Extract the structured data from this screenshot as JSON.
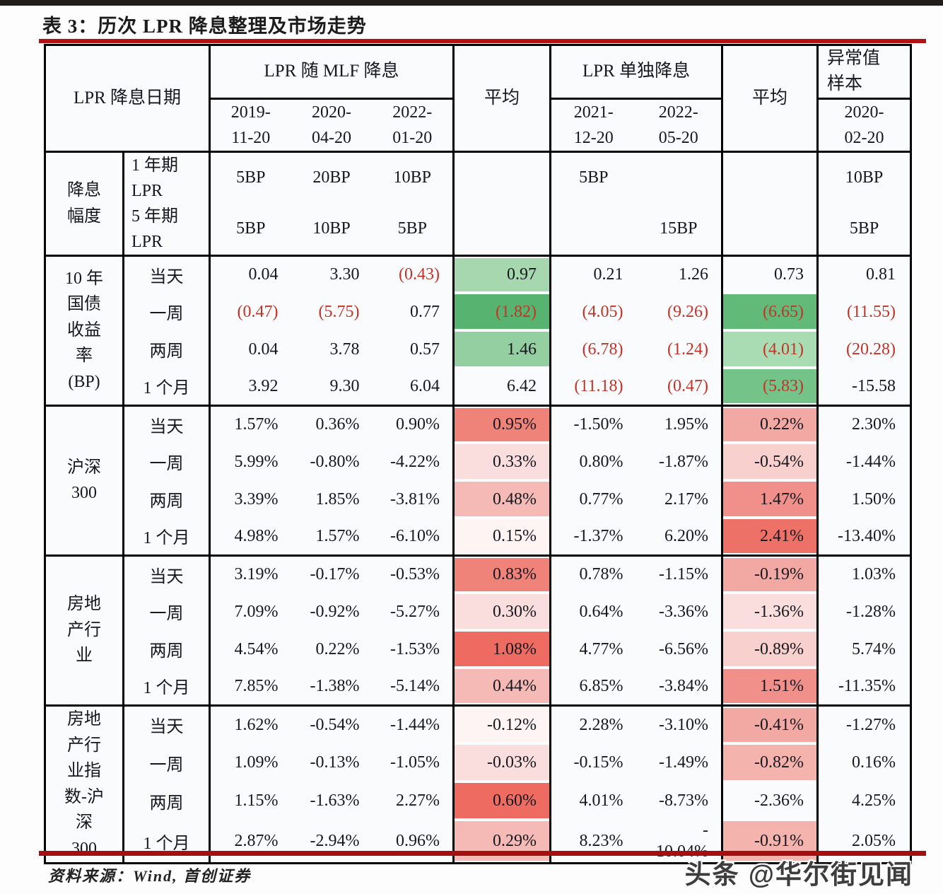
{
  "title": "表 3：历次 LPR 降息整理及市场走势",
  "source_note": "资料来源：Wind, 首创证券",
  "watermark": "头条 @华尔街见闻",
  "colors": {
    "rule_line_top": "#b31111",
    "rule_line_bottom": "#a60f0f",
    "negative_text": "#c2342a",
    "cell_background": "#fafbfc",
    "text": "#17171f",
    "border": "#000000"
  },
  "header": {
    "date_col": "LPR 降息日期",
    "mlf_group": "LPR 随 MLF 降息",
    "mlf_dates": [
      "2019-\n11-20",
      "2020-\n04-20",
      "2022-\n01-20"
    ],
    "avg1": "平均",
    "solo_group": "LPR 单独降息",
    "solo_dates": [
      "2021-\n12-20",
      "2022-\n05-20"
    ],
    "avg2": "平均",
    "outlier_group": "异常值\n样本",
    "outlier_date": "2020-\n02-20"
  },
  "cut": {
    "label": "降息\n幅度",
    "rows": [
      {
        "label": "1 年期\nLPR",
        "mlf": [
          "5BP",
          "20BP",
          "10BP"
        ],
        "solo": [
          "5BP",
          ""
        ],
        "outlier": "10BP"
      },
      {
        "label": "5 年期\nLPR",
        "mlf": [
          "5BP",
          "10BP",
          "5BP"
        ],
        "solo": [
          "",
          "15BP"
        ],
        "outlier": "5BP"
      }
    ]
  },
  "blocks": [
    {
      "label": "10 年\n国债\n收益\n率\n(BP)",
      "rows": [
        {
          "label": "当天",
          "mlf": [
            "0.04",
            "3.30",
            {
              "v": "(0.43)",
              "red": true
            }
          ],
          "avg1": {
            "v": "0.97",
            "bg": "#a6d7ae"
          },
          "solo": [
            "0.21",
            "1.26"
          ],
          "avg2": {
            "v": "0.73",
            "bg": ""
          },
          "outlier": "0.81"
        },
        {
          "label": "一周",
          "mlf": [
            {
              "v": "(0.47)",
              "red": true
            },
            {
              "v": "(5.75)",
              "red": true
            },
            "0.77"
          ],
          "avg1": {
            "v": "(1.82)",
            "bg": "#57b470",
            "red": true
          },
          "solo": [
            {
              "v": "(4.05)",
              "red": true
            },
            {
              "v": "(9.26)",
              "red": true
            }
          ],
          "avg2": {
            "v": "(6.65)",
            "bg": "#61ba77",
            "red": true
          },
          "outlier": {
            "v": "(11.55)",
            "red": true
          }
        },
        {
          "label": "两周",
          "mlf": [
            "0.04",
            "3.78",
            "0.57"
          ],
          "avg1": {
            "v": "1.46",
            "bg": "#93cfa0"
          },
          "solo": [
            {
              "v": "(6.78)",
              "red": true
            },
            {
              "v": "(1.24)",
              "red": true
            }
          ],
          "avg2": {
            "v": "(4.01)",
            "bg": "#aadcb4",
            "red": true
          },
          "outlier": {
            "v": "(20.28)",
            "red": true
          }
        },
        {
          "label": "1 个月",
          "mlf": [
            "3.92",
            "9.30",
            "6.04"
          ],
          "avg1": {
            "v": "6.42",
            "bg": ""
          },
          "solo": [
            {
              "v": "(11.18)",
              "red": true
            },
            {
              "v": "(0.47)",
              "red": true
            }
          ],
          "avg2": {
            "v": "(5.83)",
            "bg": "#74c489",
            "red": true
          },
          "outlier": "-15.58"
        }
      ]
    },
    {
      "label": "沪深\n300",
      "rows": [
        {
          "label": "当天",
          "mlf": [
            "1.57%",
            "0.36%",
            "0.90%"
          ],
          "avg1": {
            "v": "0.95%",
            "bg": "#f08379"
          },
          "solo": [
            "-1.50%",
            "1.95%"
          ],
          "avg2": {
            "v": "0.22%",
            "bg": "#f3a9a3"
          },
          "outlier": "2.30%"
        },
        {
          "label": "一周",
          "mlf": [
            "5.99%",
            "-0.80%",
            "-4.22%"
          ],
          "avg1": {
            "v": "0.33%",
            "bg": "#f9dedd"
          },
          "solo": [
            "0.80%",
            "-1.87%"
          ],
          "avg2": {
            "v": "-0.54%",
            "bg": "#f8d0cd"
          },
          "outlier": "-1.44%"
        },
        {
          "label": "两周",
          "mlf": [
            "3.39%",
            "1.85%",
            "-3.81%"
          ],
          "avg1": {
            "v": "0.48%",
            "bg": "#f5bab5"
          },
          "solo": [
            "0.77%",
            "2.17%"
          ],
          "avg2": {
            "v": "1.47%",
            "bg": "#f1908a"
          },
          "outlier": "1.50%"
        },
        {
          "label": "1 个月",
          "mlf": [
            "4.98%",
            "1.57%",
            "-6.10%"
          ],
          "avg1": {
            "v": "0.15%",
            "bg": "#fdf4f3"
          },
          "solo": [
            "-1.37%",
            "6.20%"
          ],
          "avg2": {
            "v": "2.41%",
            "bg": "#ee7168"
          },
          "outlier": "-13.40%"
        }
      ]
    },
    {
      "label": "房地\n产行\n业",
      "rows": [
        {
          "label": "当天",
          "mlf": [
            "3.19%",
            "-0.17%",
            "-0.53%"
          ],
          "avg1": {
            "v": "0.83%",
            "bg": "#f08379"
          },
          "solo": [
            "0.78%",
            "-1.15%"
          ],
          "avg2": {
            "v": "-0.19%",
            "bg": "#f3a9a3"
          },
          "outlier": "1.03%"
        },
        {
          "label": "一周",
          "mlf": [
            "7.09%",
            "-0.92%",
            "-5.27%"
          ],
          "avg1": {
            "v": "0.30%",
            "bg": "#f9dedd"
          },
          "solo": [
            "0.64%",
            "-3.36%"
          ],
          "avg2": {
            "v": "-1.36%",
            "bg": "#f9dedd"
          },
          "outlier": "-1.28%"
        },
        {
          "label": "两周",
          "mlf": [
            "4.54%",
            "0.22%",
            "-1.53%"
          ],
          "avg1": {
            "v": "1.08%",
            "bg": "#ed6b60"
          },
          "solo": [
            "4.77%",
            "-6.56%"
          ],
          "avg2": {
            "v": "-0.89%",
            "bg": "#f8d0cd"
          },
          "outlier": "5.74%"
        },
        {
          "label": "1 个月",
          "mlf": [
            "7.85%",
            "-1.38%",
            "-5.14%"
          ],
          "avg1": {
            "v": "0.44%",
            "bg": "#f5bab5"
          },
          "solo": [
            "6.85%",
            "-3.84%"
          ],
          "avg2": {
            "v": "1.51%",
            "bg": "#f1908a"
          },
          "outlier": "-11.35%"
        }
      ]
    },
    {
      "label": "房地\n产行\n业指\n数-沪\n深\n300",
      "rows": [
        {
          "label": "当天",
          "mlf": [
            "1.62%",
            "-0.54%",
            "-1.44%"
          ],
          "avg1": {
            "v": "-0.12%",
            "bg": "#fdf4f3"
          },
          "solo": [
            "2.28%",
            "-3.10%"
          ],
          "avg2": {
            "v": "-0.41%",
            "bg": "#f3a9a3"
          },
          "outlier": "-1.27%"
        },
        {
          "label": "一周",
          "mlf": [
            "1.09%",
            "-0.13%",
            "-1.05%"
          ],
          "avg1": {
            "v": "-0.03%",
            "bg": "#f9dedd"
          },
          "solo": [
            "-0.15%",
            "-1.49%"
          ],
          "avg2": {
            "v": "-0.82%",
            "bg": "#f5b3ae"
          },
          "outlier": "0.16%"
        },
        {
          "label": "两周",
          "mlf": [
            "1.15%",
            "-1.63%",
            "2.27%"
          ],
          "avg1": {
            "v": "0.60%",
            "bg": "#ed6b60"
          },
          "solo": [
            "4.01%",
            "-8.73%"
          ],
          "avg2": {
            "v": "-2.36%",
            "bg": ""
          },
          "outlier": "4.25%"
        },
        {
          "label": "1 个月",
          "mlf": [
            "2.87%",
            "-2.94%",
            "0.96%"
          ],
          "avg1": {
            "v": "0.29%",
            "bg": "#f5bab5"
          },
          "solo": [
            "8.23%",
            "-\n10.04%"
          ],
          "avg2": {
            "v": "-0.91%",
            "bg": "#f5b3ae"
          },
          "outlier": "2.05%"
        }
      ]
    }
  ]
}
